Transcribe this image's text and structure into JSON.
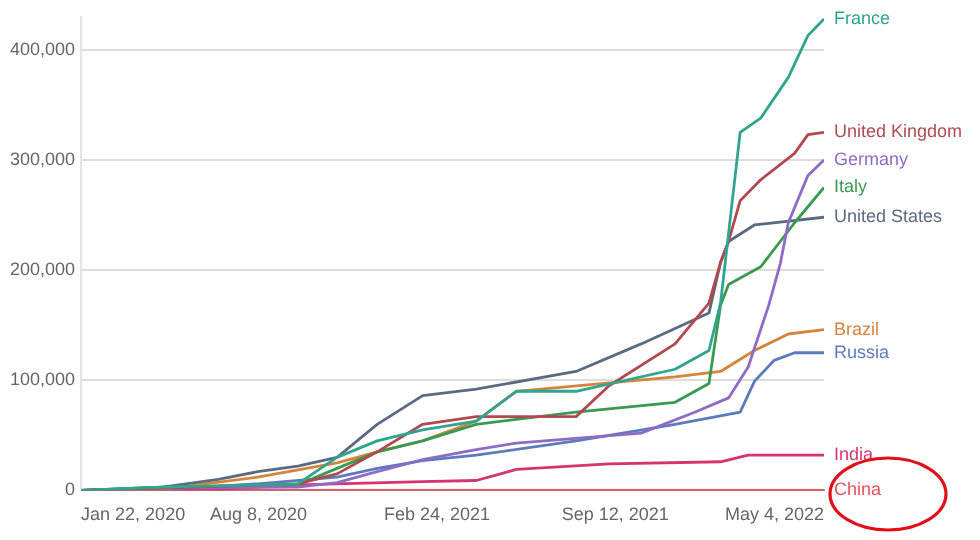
{
  "chart_data": {
    "type": "line",
    "xlim": [
      "2020-01-22",
      "2022-05-04"
    ],
    "xticks": [
      {
        "value": "2020-01-22",
        "label": "Jan 22, 2020"
      },
      {
        "value": "2020-08-08",
        "label": "Aug 8, 2020"
      },
      {
        "value": "2021-02-24",
        "label": "Feb 24, 2021"
      },
      {
        "value": "2021-09-12",
        "label": "Sep 12, 2021"
      },
      {
        "value": "2022-05-04",
        "label": "May 4, 2022"
      }
    ],
    "ylim": [
      0,
      430000
    ],
    "yticks": [
      {
        "value": 0,
        "label": "0"
      },
      {
        "value": 100000,
        "label": "100,000"
      },
      {
        "value": 200000,
        "label": "200,000"
      },
      {
        "value": 300000,
        "label": "300,000"
      },
      {
        "value": 400000,
        "label": "400,000"
      }
    ],
    "grid": "y",
    "legend": false,
    "marker": "none",
    "line_style": "solid",
    "series": [
      {
        "name": "France",
        "color": "#2fa58f",
        "x": [
          "2020-01-22",
          "2020-04-22",
          "2020-09-21",
          "2020-11-04",
          "2020-12-19",
          "2021-02-08",
          "2021-04-09",
          "2021-05-24",
          "2021-07-30",
          "2021-11-18",
          "2021-12-26",
          "2022-01-08",
          "2022-01-30",
          "2022-02-22",
          "2022-03-25",
          "2022-04-16",
          "2022-05-04"
        ],
        "values": [
          0,
          3000,
          6000,
          30000,
          45000,
          55000,
          63000,
          90000,
          90000,
          110000,
          127000,
          170000,
          325000,
          338000,
          375000,
          413000,
          428000
        ]
      },
      {
        "name": "United Kingdom",
        "color": "#b04a50",
        "x": [
          "2020-01-22",
          "2020-04-22",
          "2020-09-21",
          "2020-11-04",
          "2020-12-19",
          "2021-02-08",
          "2021-04-09",
          "2021-07-30",
          "2021-09-05",
          "2021-11-18",
          "2021-12-26",
          "2022-01-08",
          "2022-01-17",
          "2022-01-30",
          "2022-02-22",
          "2022-04-01",
          "2022-04-16",
          "2022-05-04"
        ],
        "values": [
          0,
          2000,
          6000,
          15000,
          35000,
          60000,
          67000,
          67000,
          95000,
          133000,
          170000,
          207000,
          226000,
          263000,
          282000,
          306000,
          323000,
          325000
        ]
      },
      {
        "name": "Germany",
        "color": "#8e6bc4",
        "x": [
          "2020-01-22",
          "2020-04-22",
          "2020-09-21",
          "2020-11-04",
          "2020-12-19",
          "2021-02-08",
          "2021-04-09",
          "2021-05-24",
          "2021-10-11",
          "2021-12-10",
          "2022-01-17",
          "2022-02-08",
          "2022-03-03",
          "2022-03-16",
          "2022-03-25",
          "2022-04-16",
          "2022-05-04"
        ],
        "values": [
          0,
          2000,
          3000,
          7000,
          17000,
          28000,
          37000,
          43000,
          52000,
          71000,
          84000,
          112000,
          168000,
          206000,
          243000,
          286000,
          300000
        ]
      },
      {
        "name": "Italy",
        "color": "#3a9a52",
        "x": [
          "2020-01-22",
          "2020-04-22",
          "2020-09-21",
          "2020-11-04",
          "2020-12-19",
          "2021-02-08",
          "2021-04-09",
          "2021-07-30",
          "2021-11-18",
          "2021-12-26",
          "2022-01-08",
          "2022-01-17",
          "2022-02-22",
          "2022-04-01",
          "2022-05-04"
        ],
        "values": [
          0,
          3000,
          5000,
          20000,
          35000,
          45000,
          60000,
          71000,
          80000,
          97000,
          168000,
          187000,
          203000,
          243000,
          275000
        ]
      },
      {
        "name": "United States",
        "color": "#5a6a80",
        "x": [
          "2020-01-22",
          "2020-04-22",
          "2020-06-24",
          "2020-08-07",
          "2020-09-21",
          "2020-11-04",
          "2020-12-19",
          "2021-02-08",
          "2021-04-09",
          "2021-07-30",
          "2021-10-11",
          "2021-12-26",
          "2022-01-08",
          "2022-01-17",
          "2022-02-15",
          "2022-05-04"
        ],
        "values": [
          0,
          3000,
          10000,
          17000,
          22000,
          30000,
          60000,
          86000,
          92000,
          108000,
          133000,
          161000,
          207000,
          226000,
          241000,
          248000
        ]
      },
      {
        "name": "Brazil",
        "color": "#d4843c",
        "x": [
          "2020-01-22",
          "2020-04-22",
          "2020-08-07",
          "2020-11-04",
          "2020-12-19",
          "2021-02-08",
          "2021-04-09",
          "2021-05-24",
          "2021-11-18",
          "2022-01-08",
          "2022-02-15",
          "2022-03-25",
          "2022-05-04"
        ],
        "values": [
          0,
          1000,
          12000,
          25000,
          35000,
          45000,
          63000,
          90000,
          103000,
          108000,
          127000,
          142000,
          146000
        ]
      },
      {
        "name": "Russia",
        "color": "#5b7bbb",
        "x": [
          "2020-01-22",
          "2020-04-22",
          "2020-08-07",
          "2020-11-04",
          "2020-12-19",
          "2021-02-08",
          "2021-04-09",
          "2021-07-30",
          "2021-11-18",
          "2022-01-30",
          "2022-02-15",
          "2022-03-09",
          "2022-04-01",
          "2022-05-04"
        ],
        "values": [
          0,
          1000,
          6000,
          12000,
          20000,
          27000,
          32000,
          45000,
          60000,
          71000,
          99000,
          118000,
          125000,
          125000
        ]
      },
      {
        "name": "India",
        "color": "#d6336f",
        "x": [
          "2020-01-22",
          "2020-06-24",
          "2020-09-21",
          "2021-02-08",
          "2021-04-09",
          "2021-05-24",
          "2021-09-05",
          "2022-01-08",
          "2022-02-08",
          "2022-05-04"
        ],
        "values": [
          0,
          1000,
          5000,
          8000,
          9000,
          19000,
          24000,
          26000,
          32000,
          32000
        ]
      },
      {
        "name": "China",
        "color": "#e8505a",
        "x": [
          "2020-01-22",
          "2022-05-04"
        ],
        "values": [
          0,
          0
        ]
      }
    ]
  }
}
